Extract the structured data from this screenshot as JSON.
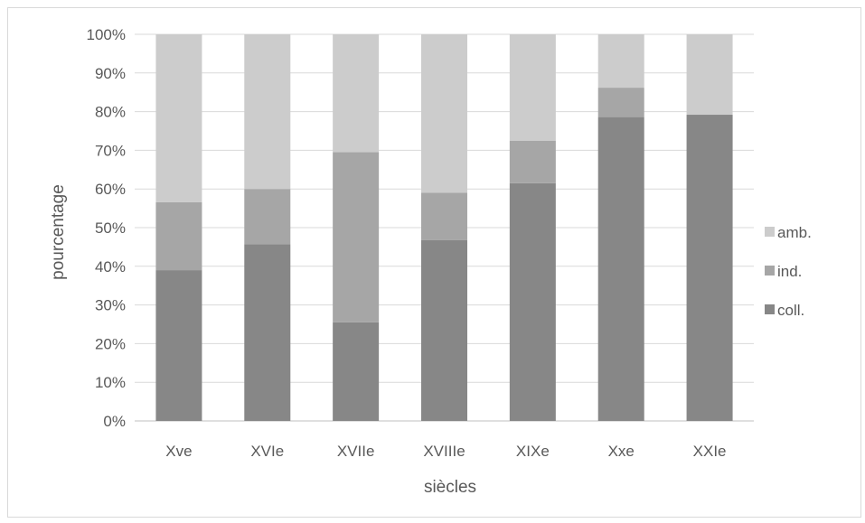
{
  "chart_data": {
    "type": "bar",
    "stacked": true,
    "normalized": true,
    "categories": [
      "Xve",
      "XVIe",
      "XVIIe",
      "XVIIIe",
      "XIXe",
      "Xxe",
      "XXIe"
    ],
    "series": [
      {
        "name": "coll.",
        "color": "#878787",
        "values": [
          39,
          45.7,
          25.5,
          46.8,
          61.5,
          78.6,
          79.2
        ]
      },
      {
        "name": "ind.",
        "color": "#a6a6a6",
        "values": [
          17.6,
          14.3,
          44.0,
          12.2,
          11.0,
          7.6,
          0
        ]
      },
      {
        "name": "amb.",
        "color": "#cccccc",
        "values": [
          43.4,
          40.0,
          30.5,
          41.0,
          27.5,
          13.8,
          20.8
        ]
      }
    ],
    "legend_order": [
      "amb.",
      "ind.",
      "coll."
    ],
    "xlabel": "siècles",
    "ylabel": "pourcentage",
    "ylim": [
      0,
      100
    ],
    "yticks": [
      "0%",
      "10%",
      "20%",
      "30%",
      "40%",
      "50%",
      "60%",
      "70%",
      "80%",
      "90%",
      "100%"
    ],
    "grid": true,
    "legend_position": "right"
  }
}
